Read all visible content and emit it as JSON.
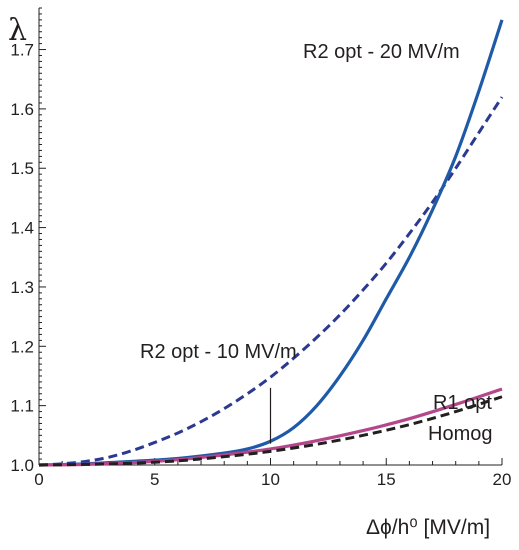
{
  "chart_data": {
    "type": "line",
    "xlabel": "Δϕ/h⁰ [MV/m]",
    "ylabel": "λ",
    "xlim": [
      0,
      20
    ],
    "ylim": [
      1.0,
      1.77
    ],
    "xticks": [
      0,
      5,
      10,
      15,
      20
    ],
    "yticks": [
      1.0,
      1.1,
      1.2,
      1.3,
      1.4,
      1.5,
      1.6,
      1.7
    ],
    "grid": false,
    "series": [
      {
        "name": "R2 opt - 20 MV/m",
        "style": "solid",
        "color": "#1f5aa8",
        "x": [
          0,
          2,
          4,
          6,
          8,
          9,
          10,
          11,
          12,
          13,
          14,
          15,
          16,
          17,
          18,
          19,
          20
        ],
        "y": [
          1.0,
          1.002,
          1.006,
          1.011,
          1.02,
          1.027,
          1.04,
          1.063,
          1.1,
          1.15,
          1.21,
          1.28,
          1.35,
          1.43,
          1.52,
          1.63,
          1.75
        ]
      },
      {
        "name": "R2 opt - 10 MV/m",
        "style": "dashed",
        "color": "#2b3990",
        "x": [
          0,
          1,
          2,
          3,
          4,
          5,
          6,
          7,
          8,
          9,
          10,
          11,
          12,
          13,
          14,
          15,
          16,
          17,
          18,
          19,
          20
        ],
        "y": [
          1.0,
          1.002,
          1.006,
          1.013,
          1.024,
          1.038,
          1.054,
          1.073,
          1.095,
          1.12,
          1.148,
          1.18,
          1.215,
          1.253,
          1.295,
          1.34,
          1.39,
          1.443,
          1.5,
          1.56,
          1.62
        ]
      },
      {
        "name": "R1 opt",
        "style": "solid",
        "color": "#b5468a",
        "x": [
          0,
          2,
          4,
          6,
          8,
          10,
          12,
          14,
          16,
          18,
          20
        ],
        "y": [
          1.0,
          1.001,
          1.004,
          1.009,
          1.017,
          1.027,
          1.041,
          1.058,
          1.078,
          1.102,
          1.128
        ]
      },
      {
        "name": "Homog",
        "style": "dashed",
        "color": "#231f20",
        "x": [
          0,
          2,
          4,
          6,
          8,
          10,
          12,
          14,
          16,
          18,
          20
        ],
        "y": [
          1.0,
          1.001,
          1.003,
          1.007,
          1.014,
          1.023,
          1.035,
          1.05,
          1.068,
          1.09,
          1.115
        ]
      }
    ],
    "marker_line": {
      "x": 10,
      "y_from": 1.036,
      "y_to": 1.13
    },
    "labels": {
      "r2_20": "R2 opt - 20 MV/m",
      "r2_10": "R2 opt - 10 MV/m",
      "r1": "R1 opt",
      "homog": "Homog"
    }
  }
}
